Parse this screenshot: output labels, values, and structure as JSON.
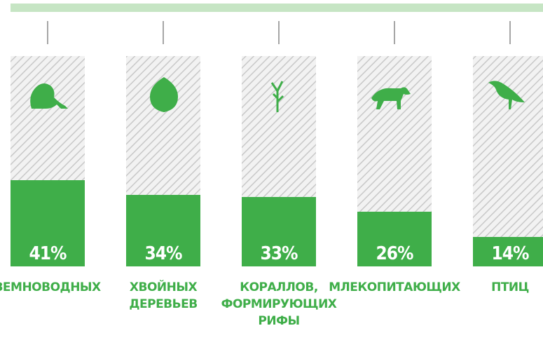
{
  "chart_data": {
    "type": "bar",
    "categories": [
      "ЗЕМНОВОДНЫХ",
      "ХВОЙНЫХ ДЕРЕВЬЕВ",
      "КОРАЛЛОВ, ФОРМИРУЮЩИХ РИФЫ",
      "МЛЕКОПИТАЮЩИХ",
      "ПТИЦ"
    ],
    "values": [
      41,
      34,
      33,
      26,
      14
    ],
    "value_labels": [
      "41%",
      "34%",
      "33%",
      "26%",
      "14%"
    ],
    "color": "#3fae49",
    "ylim": [
      0,
      100
    ]
  }
}
